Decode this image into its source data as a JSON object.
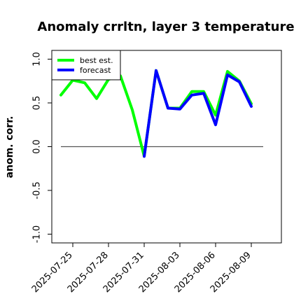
{
  "chart_data": {
    "type": "line",
    "title": "Anomaly crrltn, layer 3 temperature",
    "xlabel": "",
    "ylabel": "anom. corr.",
    "x": [
      "2025-07-24",
      "2025-07-25",
      "2025-07-26",
      "2025-07-27",
      "2025-07-28",
      "2025-07-29",
      "2025-07-30",
      "2025-07-31",
      "2025-08-01",
      "2025-08-02",
      "2025-08-03",
      "2025-08-04",
      "2025-08-05",
      "2025-08-06",
      "2025-08-07",
      "2025-08-08",
      "2025-08-09"
    ],
    "xticks": [
      "2025-07-25",
      "2025-07-28",
      "2025-07-31",
      "2025-08-03",
      "2025-08-06",
      "2025-08-09"
    ],
    "highlight_tick": "2025-07-31",
    "highlight_color": "#228b22",
    "ylim": [
      -1.1,
      1.1
    ],
    "yticks": [
      "-1.0",
      "-0.5",
      "0.0",
      "0.5",
      "1.0"
    ],
    "ytick_values": [
      -1.0,
      -0.5,
      0.0,
      0.5,
      1.0
    ],
    "zero_line": 0.0,
    "grid": false,
    "legend_position": "top-left",
    "series": [
      {
        "name": "best est.",
        "color": "#00ff00",
        "values": [
          0.59,
          0.76,
          0.73,
          0.55,
          0.77,
          0.81,
          0.42,
          -0.11,
          0.87,
          0.44,
          0.44,
          0.63,
          0.63,
          0.36,
          0.86,
          0.75,
          0.49
        ]
      },
      {
        "name": "forecast",
        "color": "#0000ff",
        "values": [
          null,
          null,
          null,
          null,
          null,
          null,
          null,
          -0.11,
          0.87,
          0.44,
          0.43,
          0.59,
          0.61,
          0.25,
          0.82,
          0.74,
          0.46
        ]
      }
    ]
  }
}
